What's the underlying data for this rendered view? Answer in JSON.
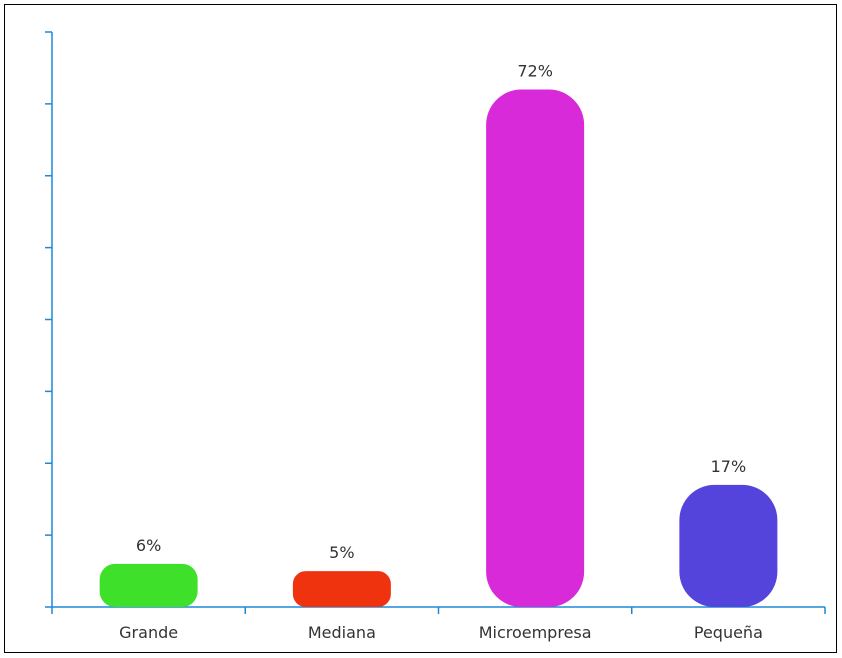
{
  "chart_data": {
    "type": "bar",
    "title": "",
    "xlabel": "",
    "ylabel": "",
    "categories": [
      "Grande",
      "Mediana",
      "Microempresa",
      "Pequeña"
    ],
    "values": [
      6,
      5,
      72,
      17
    ],
    "data_labels": [
      "6%",
      "5%",
      "72%",
      "17%"
    ],
    "colors": [
      "#3fe02a",
      "#f0330f",
      "#d82ad8",
      "#5444dc"
    ],
    "ylim": [
      0,
      80
    ],
    "y_tick_count": 8,
    "grid": false,
    "legend": "none",
    "axis_color": "#1e88d8"
  }
}
